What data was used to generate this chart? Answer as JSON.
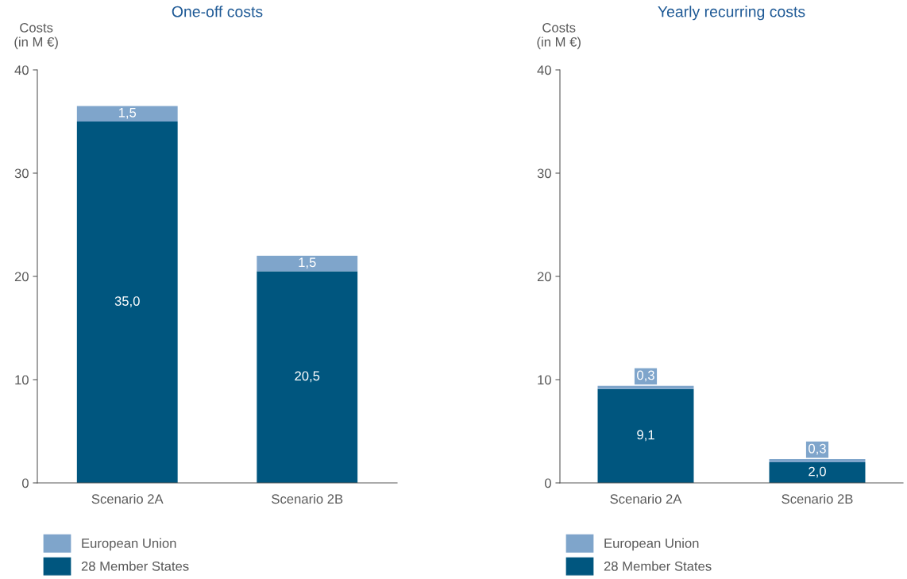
{
  "chart_data": [
    {
      "type": "bar",
      "title": "One-off costs",
      "ylabel": "Costs\n(in M €)",
      "categories": [
        "Scenario 2A",
        "Scenario 2B"
      ],
      "stacked": true,
      "ylim": [
        0,
        40
      ],
      "yticks": [
        0,
        10,
        20,
        30,
        40
      ],
      "grid": false,
      "legend": "bottom",
      "series": [
        {
          "name": "28 Member States",
          "color": "#00567f",
          "values": [
            35.0,
            20.5
          ],
          "value_labels": [
            "35,0",
            "20,5"
          ]
        },
        {
          "name": "European Union",
          "color": "#7fa5cb",
          "values": [
            1.5,
            1.5
          ],
          "value_labels": [
            "1,5",
            "1,5"
          ]
        }
      ]
    },
    {
      "type": "bar",
      "title": "Yearly recurring costs",
      "ylabel": "Costs\n(in M €)",
      "categories": [
        "Scenario 2A",
        "Scenario 2B"
      ],
      "stacked": true,
      "ylim": [
        0,
        40
      ],
      "yticks": [
        0,
        10,
        20,
        30,
        40
      ],
      "grid": false,
      "legend": "bottom",
      "series": [
        {
          "name": "28 Member States",
          "color": "#00567f",
          "values": [
            9.1,
            2.0
          ],
          "value_labels": [
            "9,1",
            "2,0"
          ]
        },
        {
          "name": "European Union",
          "color": "#7fa5cb",
          "values": [
            0.3,
            0.3
          ],
          "value_labels": [
            "0,3",
            "0,3"
          ]
        }
      ]
    }
  ]
}
